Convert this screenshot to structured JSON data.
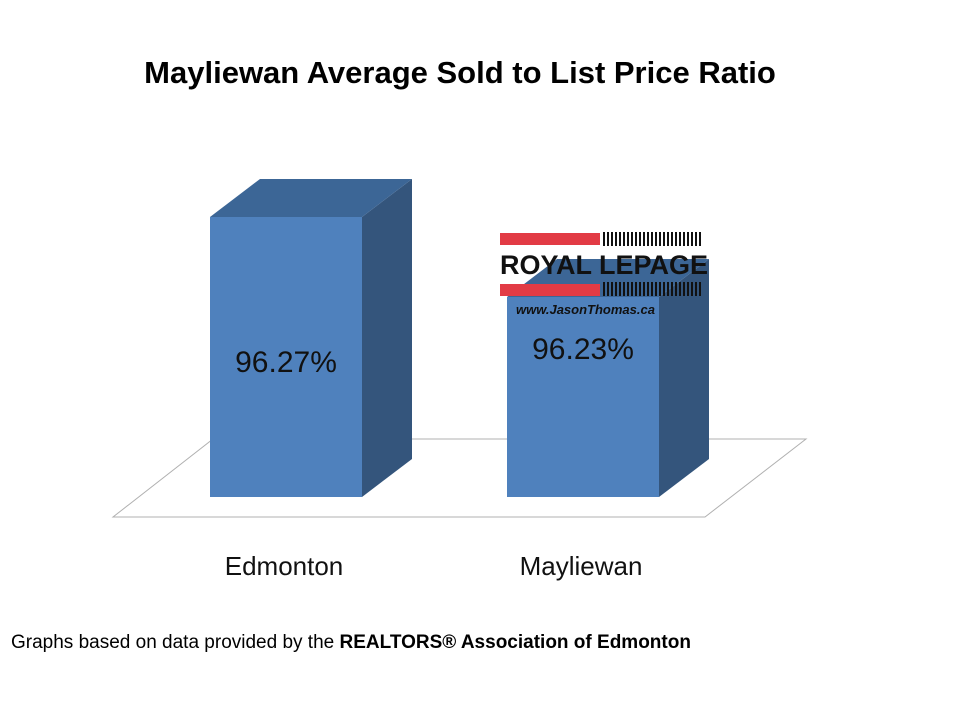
{
  "chart_data": {
    "type": "bar",
    "title": "Mayliewan Average Sold to List Price Ratio",
    "categories": [
      "Edmonton",
      "Mayliewan"
    ],
    "values": [
      96.27,
      96.23
    ],
    "data_labels": [
      "96.27%",
      "96.23%"
    ],
    "xlabel": "",
    "ylabel": "",
    "grid": false,
    "legend": "none",
    "colors": {
      "bar_front": "#4f81bd",
      "bar_side": "#34557c",
      "bar_top": "#3c6696"
    }
  },
  "logo": {
    "brand": "ROYAL LEPAGE",
    "url": "www.JasonThomas.ca"
  },
  "footer": {
    "source_prefix": "Graphs based on data provided by the ",
    "source_org": "REALTORS® Association of Edmonton"
  }
}
